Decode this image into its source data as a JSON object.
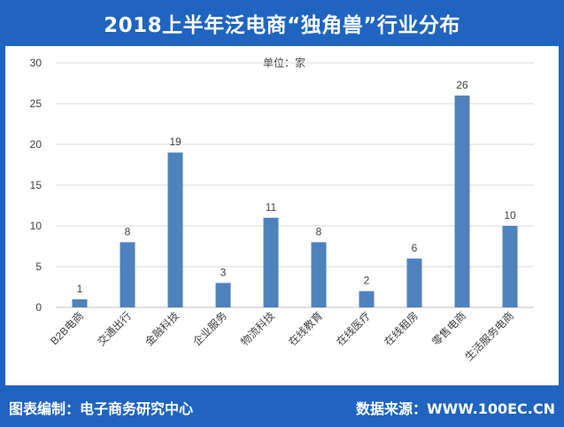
{
  "header": {
    "title": "2018上半年泛电商“独角兽”行业分布"
  },
  "footer": {
    "left": "图表编制：电子商务研究中心",
    "right": "数据来源：WWW.100EC.CN"
  },
  "chart_data": {
    "type": "bar",
    "unit_label": "单位：家",
    "categories": [
      "B2B电商",
      "交通出行",
      "金融科技",
      "企业服务",
      "物流科技",
      "在线教育",
      "在线医疗",
      "在线租房",
      "零售电商",
      "生活服务电商"
    ],
    "values": [
      1,
      8,
      19,
      3,
      11,
      8,
      2,
      6,
      26,
      10
    ],
    "ylim": [
      0,
      30
    ],
    "yticks": [
      0,
      5,
      10,
      15,
      20,
      25,
      30
    ],
    "grid": true,
    "bar_color": "#4f81bd",
    "legend": "none"
  },
  "colors": {
    "frame": "#1f64c0",
    "bar": "#4f81bd",
    "grid": "#d9d9d9"
  }
}
